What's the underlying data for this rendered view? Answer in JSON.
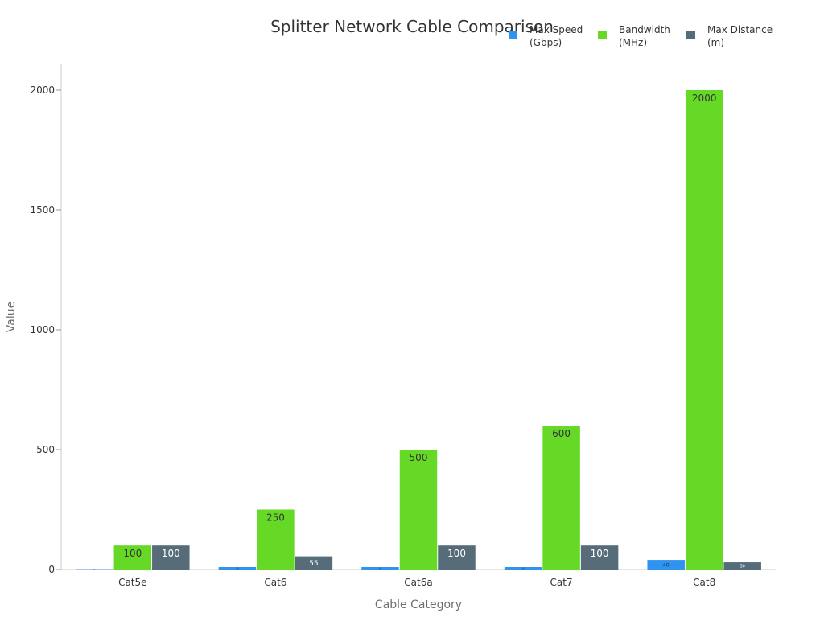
{
  "chart_data": {
    "type": "bar",
    "title": "Splitter Network Cable Comparison",
    "xlabel": "Cable Category",
    "ylabel": "Value",
    "categories": [
      "Cat5e",
      "Cat6",
      "Cat6a",
      "Cat7",
      "Cat8"
    ],
    "series": [
      {
        "name": "Max Speed (Gbps)",
        "legend_lines": [
          "Max Speed",
          "(Gbps)"
        ],
        "color": "#2f93f0",
        "values": [
          1,
          10,
          10,
          10,
          40
        ]
      },
      {
        "name": "Bandwidth (MHz)",
        "legend_lines": [
          "Bandwidth",
          "(MHz)"
        ],
        "color": "#66d926",
        "values": [
          100,
          250,
          500,
          600,
          2000
        ]
      },
      {
        "name": "Max Distance (m)",
        "legend_lines": [
          "Max Distance",
          "(m)"
        ],
        "color": "#566d79",
        "values": [
          100,
          55,
          100,
          100,
          30
        ]
      }
    ],
    "ylim": [
      0,
      2100
    ],
    "yticks": [
      0,
      500,
      1000,
      1500,
      2000
    ],
    "grid": false,
    "legend_position": "top-right"
  }
}
